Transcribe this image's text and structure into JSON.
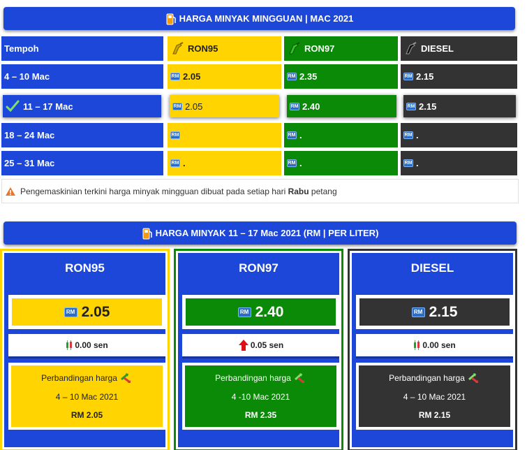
{
  "weekly": {
    "title": "HARGA MINYAK MINGGUAN | MAC 2021",
    "header": {
      "period": "Tempoh",
      "fuels": [
        "RON95",
        "RON97",
        "DIESEL"
      ]
    },
    "rows": [
      {
        "period": "4 – 10 Mac",
        "ron95": "2.05",
        "ron97": "2.35",
        "diesel": "2.15",
        "highlight": false
      },
      {
        "period": "11 – 17 Mac",
        "ron95": "2.05",
        "ron97": "2.40",
        "diesel": "2.15",
        "highlight": true
      },
      {
        "period": "18 – 24 Mac",
        "ron95": "",
        "ron97": ".",
        "diesel": ".",
        "highlight": false
      },
      {
        "period": "25 – 31 Mac",
        "ron95": ".",
        "ron97": ".",
        "diesel": ".",
        "highlight": false
      }
    ],
    "rm_label": "RM"
  },
  "note": {
    "prefix": "Pengemaskinian terkini harga minyak mingguan dibuat pada setiap hari ",
    "bold": "Rabu",
    "suffix": " petang"
  },
  "current": {
    "title": "HARGA MINYAK  11 – 17 Mac 2021  (RM | PER LITER)",
    "cards": [
      {
        "name": "RON95",
        "price": "2.05",
        "change": "0.00 sen",
        "compare_label": "Perbandingan harga",
        "compare_period": "4 – 10 Mac 2021",
        "compare_price": "RM 2.05"
      },
      {
        "name": "RON97",
        "price": "2.40",
        "change": "0.05 sen",
        "compare_label": "Perbandingan harga",
        "compare_period": "4 -10 Mac 2021",
        "compare_price": "RM 2.35"
      },
      {
        "name": "DIESEL",
        "price": "2.15",
        "change": "0.00 sen",
        "compare_label": "Perbandingan harga",
        "compare_period": "4 – 10 Mac 2021",
        "compare_price": "RM 2.15"
      }
    ]
  },
  "icons": {
    "banner": "fuel-pump-icon",
    "nozzle": "fuel-nozzle-icon",
    "check": "checkmark-icon",
    "warn": "warning-icon",
    "trend": "trend-arrows-icon",
    "candle": "candlestick-icon",
    "up": "red-up-arrow-icon"
  },
  "colors": {
    "blue": "#1d47d8",
    "ron95": "#ffd400",
    "ron97": "#0a8a06",
    "diesel": "#333333"
  }
}
